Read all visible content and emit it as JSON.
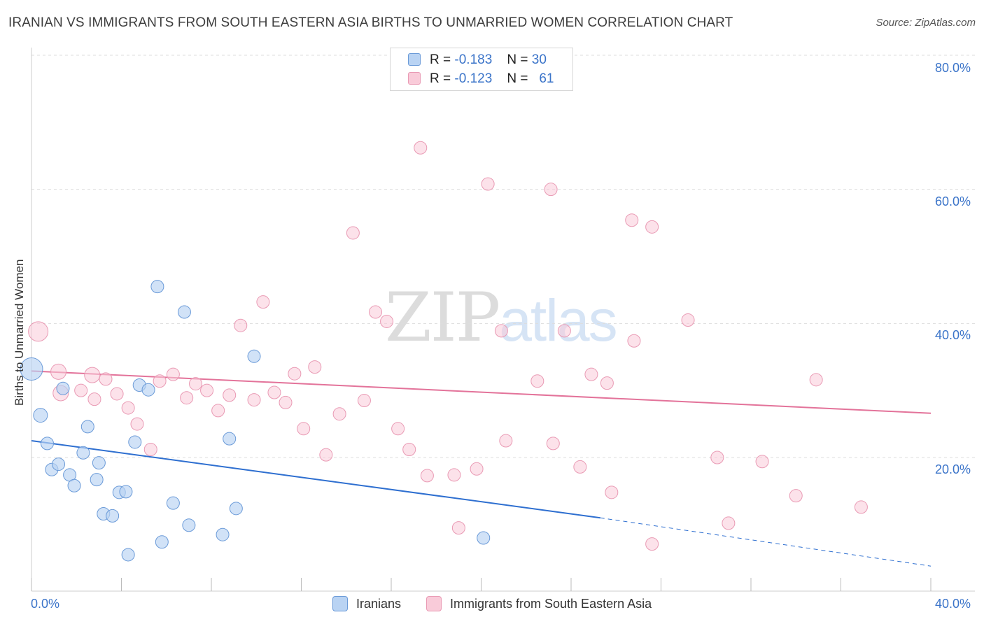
{
  "header": {
    "title": "IRANIAN VS IMMIGRANTS FROM SOUTH EASTERN ASIA BIRTHS TO UNMARRIED WOMEN CORRELATION CHART",
    "source": "Source: ZipAtlas.com"
  },
  "watermark": {
    "part1": "ZIP",
    "part2": "atlas"
  },
  "legend": {
    "rows": [
      {
        "r_label": "R =",
        "r_value": "-0.183",
        "n_label": "N =",
        "n_value": "30"
      },
      {
        "r_label": "R =",
        "r_value": "-0.123",
        "n_label": "N =",
        "n_value": "61"
      }
    ]
  },
  "bottom_legend": {
    "series1": "Iranians",
    "series2": "Immigrants from South Eastern Asia"
  },
  "axes": {
    "x_left_label": "0.0%",
    "x_right_label": "40.0%",
    "y_title": "Births to Unmarried Women",
    "y_ticks": [
      "80.0%",
      "60.0%",
      "40.0%",
      "20.0%"
    ]
  },
  "colors": {
    "blue_fill": "#b9d3f3",
    "blue_stroke": "#6a9ad8",
    "blue_line": "#2e6fd0",
    "pink_fill": "#f9cbd9",
    "pink_stroke": "#e99ab4",
    "pink_line": "#e3739a",
    "grid": "#dddddd",
    "axis_label": "#3b74c9"
  },
  "chart_data": {
    "type": "scatter",
    "title": "IRANIAN VS IMMIGRANTS FROM SOUTH EASTERN ASIA BIRTHS TO UNMARRIED WOMEN CORRELATION CHART",
    "xlabel": "",
    "ylabel": "Births to Unmarried Women",
    "xlim": [
      0,
      40
    ],
    "ylim": [
      0,
      82
    ],
    "y_gridlines": [
      20,
      40,
      60,
      80
    ],
    "series": [
      {
        "name": "Iranians",
        "R": -0.183,
        "N": 30,
        "trend": {
          "x0": 0,
          "y0": 22.5,
          "x1": 25.3,
          "y1": 11.0,
          "dash_to_x": 40,
          "dash_to_y": 3.8
        },
        "points": [
          [
            0.0,
            33.2,
            16
          ],
          [
            0.4,
            26.3,
            10
          ],
          [
            0.7,
            22.1,
            9
          ],
          [
            0.9,
            18.2,
            9
          ],
          [
            1.2,
            19.0,
            9
          ],
          [
            1.4,
            30.3,
            9
          ],
          [
            1.7,
            17.4,
            9
          ],
          [
            1.9,
            15.8,
            9
          ],
          [
            2.3,
            20.7,
            9
          ],
          [
            2.5,
            24.6,
            9
          ],
          [
            2.9,
            16.7,
            9
          ],
          [
            3.0,
            19.2,
            9
          ],
          [
            3.2,
            11.6,
            9
          ],
          [
            3.6,
            11.3,
            9
          ],
          [
            3.9,
            14.8,
            9
          ],
          [
            4.2,
            14.9,
            9
          ],
          [
            4.3,
            5.5,
            9
          ],
          [
            4.6,
            22.3,
            9
          ],
          [
            4.8,
            30.8,
            9
          ],
          [
            5.2,
            30.1,
            9
          ],
          [
            5.6,
            45.5,
            9
          ],
          [
            5.8,
            7.4,
            9
          ],
          [
            6.3,
            13.2,
            9
          ],
          [
            6.8,
            41.7,
            9
          ],
          [
            7.0,
            9.9,
            9
          ],
          [
            8.5,
            8.5,
            9
          ],
          [
            8.8,
            22.8,
            9
          ],
          [
            9.1,
            12.4,
            9
          ],
          [
            9.9,
            35.1,
            9
          ],
          [
            20.1,
            8.0,
            9
          ]
        ]
      },
      {
        "name": "Immigrants from South Eastern Asia",
        "R": -0.123,
        "N": 61,
        "trend": {
          "x0": 0,
          "y0": 32.9,
          "x1": 40,
          "y1": 26.6
        },
        "points": [
          [
            0.3,
            38.8,
            14
          ],
          [
            1.2,
            32.8,
            11
          ],
          [
            1.3,
            29.6,
            11
          ],
          [
            2.2,
            30.0,
            9
          ],
          [
            2.7,
            32.3,
            11
          ],
          [
            2.8,
            28.7,
            9
          ],
          [
            3.3,
            31.7,
            9
          ],
          [
            3.8,
            29.5,
            9
          ],
          [
            4.3,
            27.4,
            9
          ],
          [
            4.7,
            25.0,
            9
          ],
          [
            5.3,
            21.2,
            9
          ],
          [
            5.7,
            31.4,
            9
          ],
          [
            6.3,
            32.4,
            9
          ],
          [
            6.9,
            28.9,
            9
          ],
          [
            7.3,
            31.0,
            9
          ],
          [
            7.8,
            30.0,
            9
          ],
          [
            8.3,
            27.0,
            9
          ],
          [
            8.8,
            29.3,
            9
          ],
          [
            9.3,
            39.7,
            9
          ],
          [
            9.9,
            28.6,
            9
          ],
          [
            10.3,
            43.2,
            9
          ],
          [
            10.8,
            29.7,
            9
          ],
          [
            11.3,
            28.2,
            9
          ],
          [
            11.7,
            32.5,
            9
          ],
          [
            12.1,
            24.3,
            9
          ],
          [
            12.6,
            33.5,
            9
          ],
          [
            13.1,
            20.4,
            9
          ],
          [
            13.7,
            26.5,
            9
          ],
          [
            14.3,
            53.5,
            9
          ],
          [
            14.8,
            28.5,
            9
          ],
          [
            15.3,
            41.7,
            9
          ],
          [
            15.8,
            40.3,
            9
          ],
          [
            16.3,
            24.3,
            9
          ],
          [
            16.8,
            21.2,
            9
          ],
          [
            17.3,
            66.2,
            9
          ],
          [
            17.6,
            17.3,
            9
          ],
          [
            18.8,
            17.4,
            9
          ],
          [
            19.0,
            9.5,
            9
          ],
          [
            19.8,
            18.3,
            9
          ],
          [
            20.3,
            60.8,
            9
          ],
          [
            20.9,
            38.9,
            9
          ],
          [
            21.1,
            22.5,
            9
          ],
          [
            22.5,
            31.4,
            9
          ],
          [
            23.1,
            60.0,
            9
          ],
          [
            23.2,
            22.1,
            9
          ],
          [
            23.7,
            38.9,
            9
          ],
          [
            24.4,
            18.6,
            9
          ],
          [
            24.9,
            32.4,
            9
          ],
          [
            25.6,
            31.1,
            9
          ],
          [
            25.8,
            14.8,
            9
          ],
          [
            26.7,
            55.4,
            9
          ],
          [
            26.8,
            37.4,
            9
          ],
          [
            27.6,
            54.4,
            9
          ],
          [
            27.6,
            7.1,
            9
          ],
          [
            29.2,
            40.5,
            9
          ],
          [
            30.5,
            20.0,
            9
          ],
          [
            31.0,
            10.2,
            9
          ],
          [
            32.5,
            19.4,
            9
          ],
          [
            34.0,
            14.3,
            9
          ],
          [
            34.9,
            31.6,
            9
          ],
          [
            36.9,
            12.6,
            9
          ]
        ]
      }
    ]
  }
}
